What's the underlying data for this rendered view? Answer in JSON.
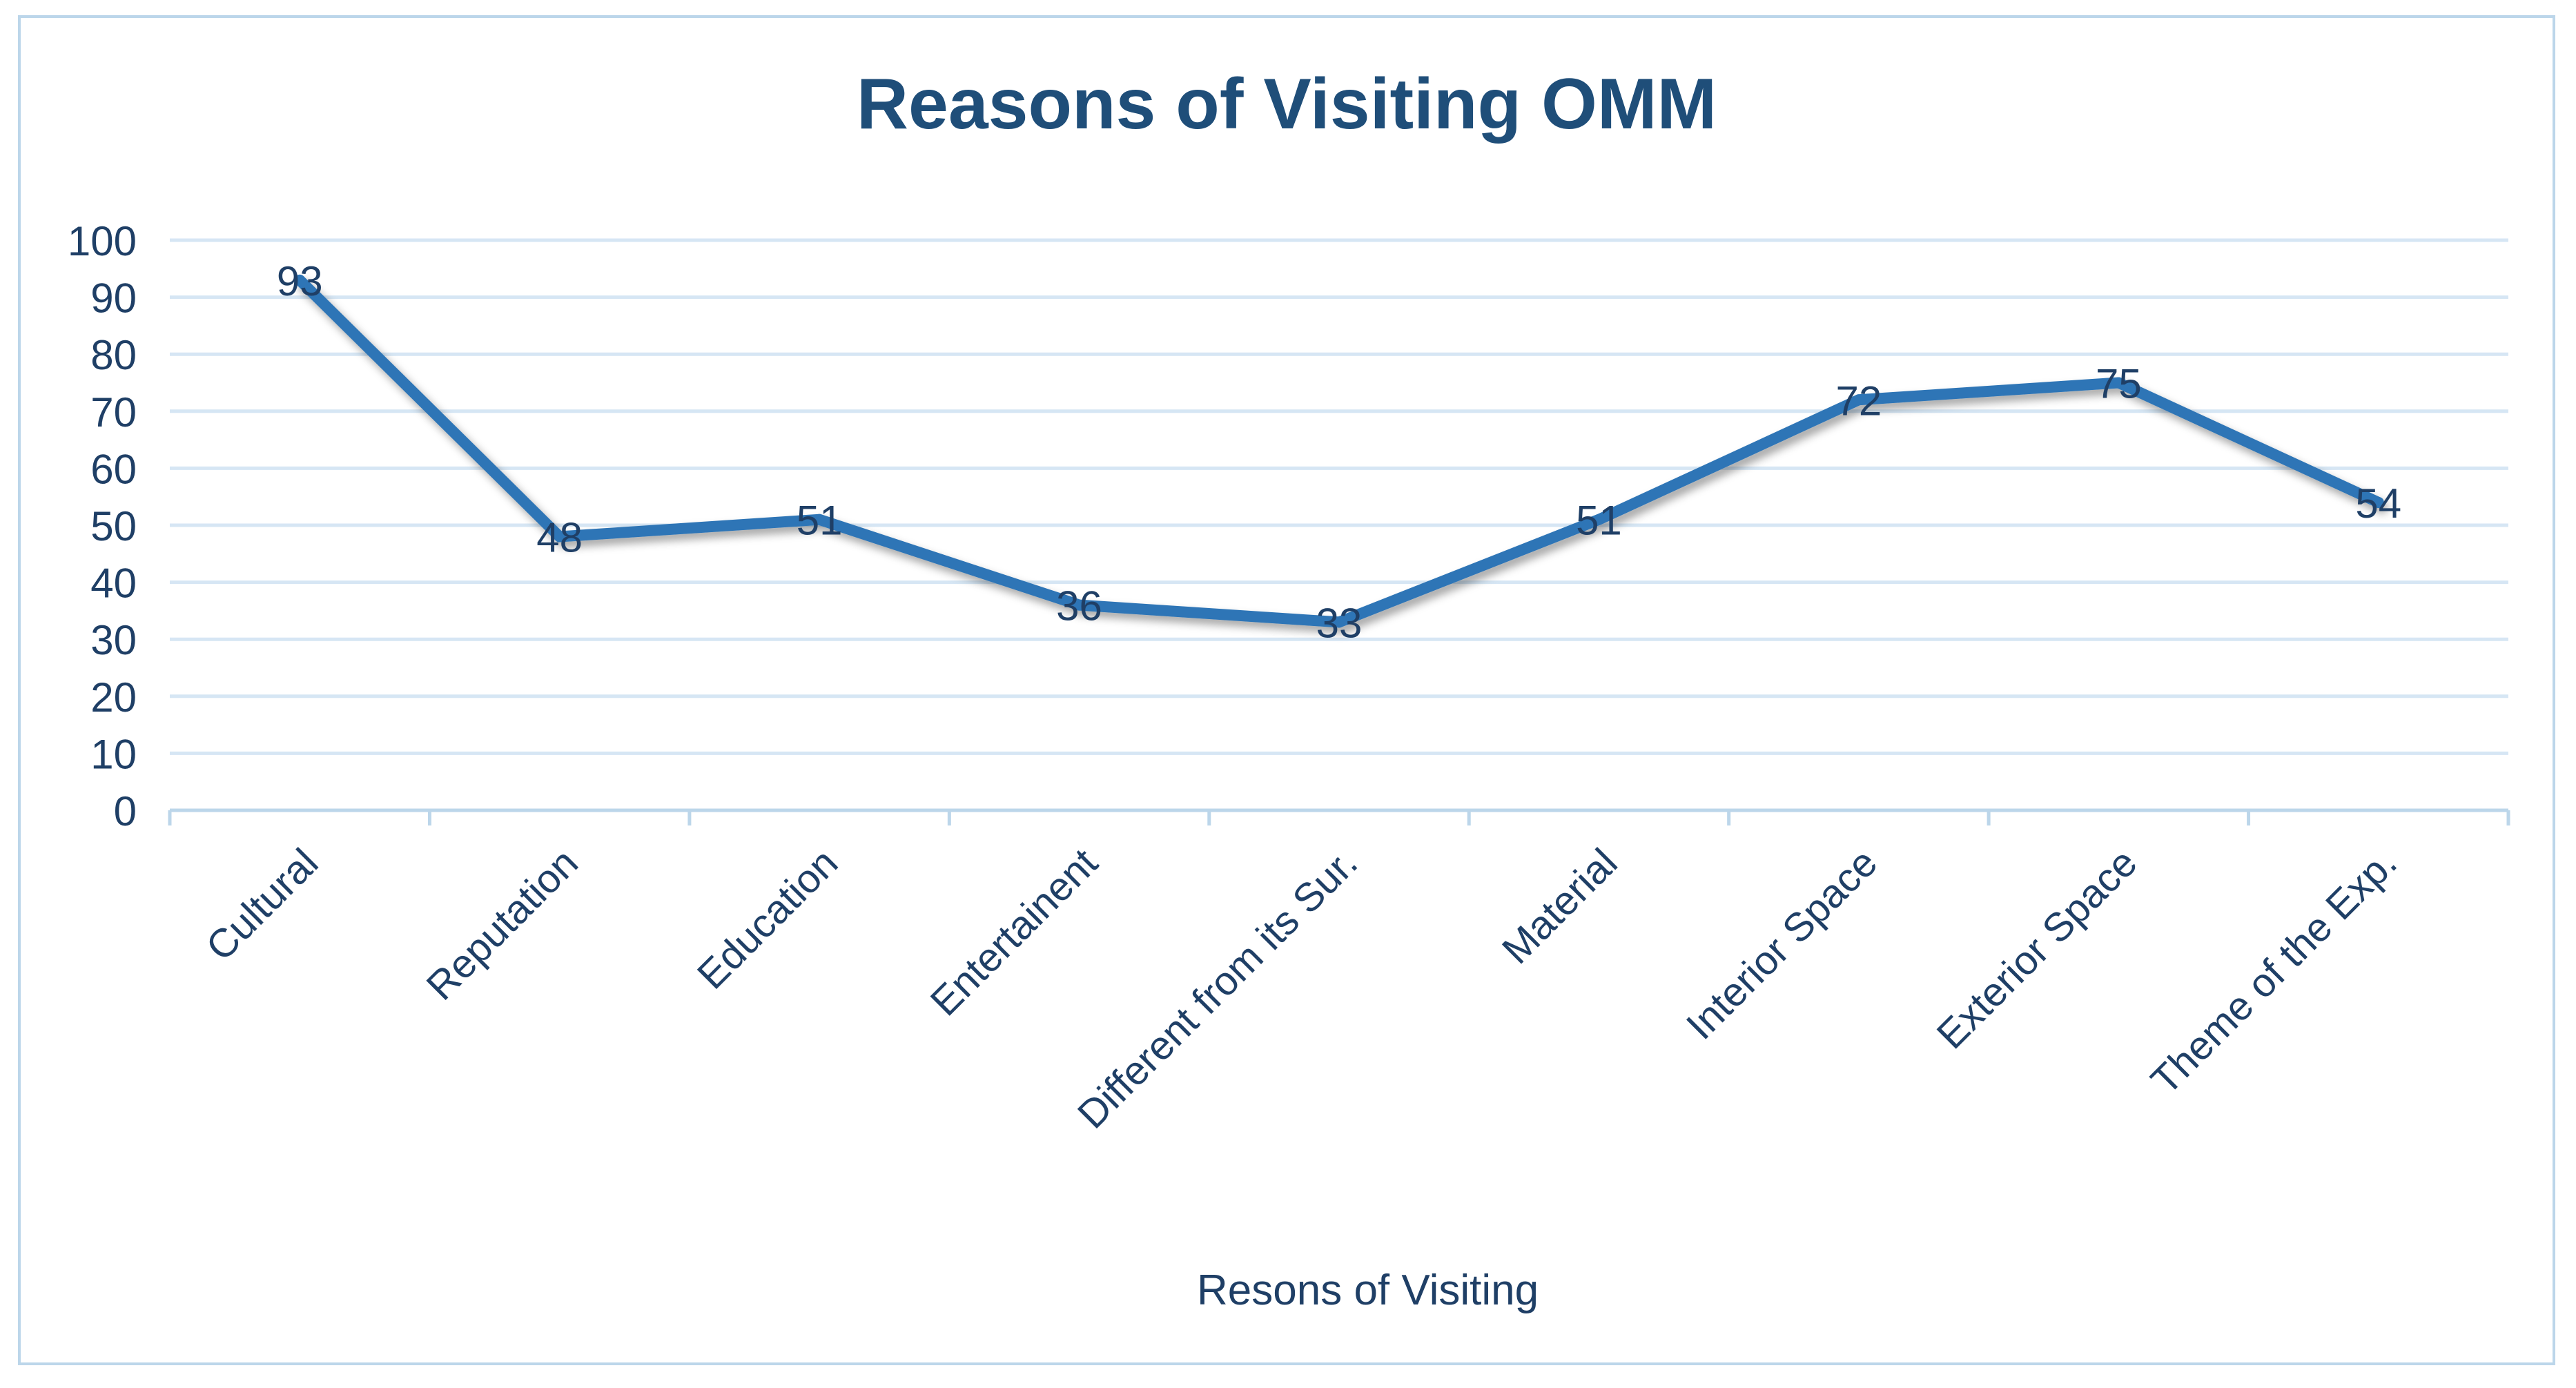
{
  "chart_data": {
    "type": "line",
    "title": "Reasons of Visiting OMM",
    "xlabel": "",
    "ylabel": "",
    "ylim": [
      0,
      100
    ],
    "yticks": [
      0,
      10,
      20,
      30,
      40,
      50,
      60,
      70,
      80,
      90,
      100
    ],
    "grid": true,
    "legend_position": "bottom",
    "categories": [
      "Cultural",
      "Reputation",
      "Education",
      "Entertainent",
      "Different from its Sur.",
      "Material",
      "Interior Space",
      "Exterior Space",
      "Theme of the Exp."
    ],
    "series": [
      {
        "name": "Resons of Visiting",
        "values": [
          93,
          48,
          51,
          36,
          33,
          51,
          72,
          75,
          54
        ],
        "data_labels": [
          "93",
          "48",
          "51",
          "36",
          "33",
          "51",
          "72",
          "75",
          "54"
        ]
      }
    ]
  },
  "colors": {
    "series_line": "#2e75b6",
    "gridline": "#d6e6f4",
    "axis": "#bcd6ea",
    "frame": "#bcd6ea",
    "title": "#1f4e79",
    "text": "#1f3f66"
  }
}
